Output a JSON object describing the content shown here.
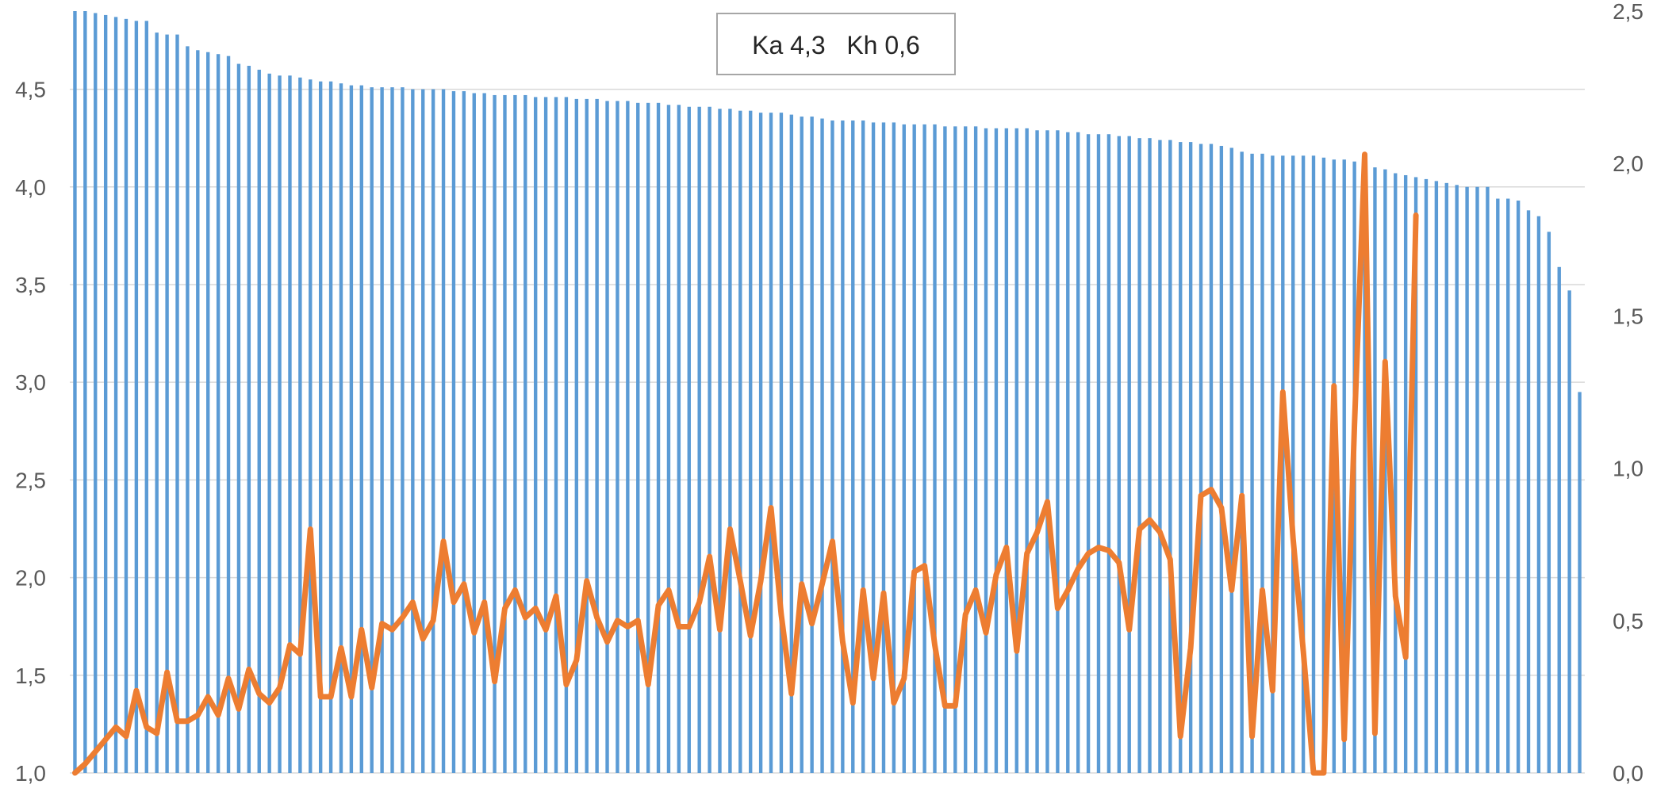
{
  "chart_data": {
    "type": "bar",
    "title": "",
    "annotation": "Ka 4,3   Kh 0,6",
    "xlabel": "",
    "ylabel": "",
    "y_left": {
      "lim": [
        1.0,
        4.9
      ],
      "ticks": [
        "1,0",
        "1,5",
        "2,0",
        "2,5",
        "3,0",
        "3,5",
        "4,0",
        "4,5"
      ],
      "tick_values": [
        1.0,
        1.5,
        2.0,
        2.5,
        3.0,
        3.5,
        4.0,
        4.5
      ]
    },
    "y_right": {
      "lim": [
        0.0,
        2.5
      ],
      "ticks": [
        "0,0",
        "0,5",
        "1,0",
        "1,5",
        "2,0",
        "2,5"
      ],
      "tick_values": [
        0.0,
        0.5,
        1.0,
        1.5,
        2.0,
        2.5
      ]
    },
    "grid": true,
    "colors": {
      "bars": "#5b9bd5",
      "line": "#ed7d31",
      "grid": "#d9d9d9"
    },
    "series": [
      {
        "type": "bar",
        "axis": "left",
        "values": [
          4.9,
          4.9,
          4.89,
          4.88,
          4.87,
          4.86,
          4.85,
          4.85,
          4.79,
          4.78,
          4.78,
          4.72,
          4.7,
          4.69,
          4.68,
          4.67,
          4.63,
          4.62,
          4.6,
          4.58,
          4.57,
          4.57,
          4.56,
          4.55,
          4.54,
          4.54,
          4.53,
          4.52,
          4.52,
          4.51,
          4.51,
          4.51,
          4.51,
          4.5,
          4.5,
          4.5,
          4.5,
          4.49,
          4.49,
          4.48,
          4.48,
          4.47,
          4.47,
          4.47,
          4.47,
          4.46,
          4.46,
          4.46,
          4.46,
          4.45,
          4.45,
          4.45,
          4.44,
          4.44,
          4.44,
          4.43,
          4.43,
          4.43,
          4.42,
          4.42,
          4.41,
          4.41,
          4.41,
          4.4,
          4.4,
          4.39,
          4.39,
          4.38,
          4.38,
          4.38,
          4.37,
          4.36,
          4.36,
          4.35,
          4.34,
          4.34,
          4.34,
          4.34,
          4.33,
          4.33,
          4.33,
          4.32,
          4.32,
          4.32,
          4.32,
          4.31,
          4.31,
          4.31,
          4.31,
          4.3,
          4.3,
          4.3,
          4.3,
          4.3,
          4.29,
          4.29,
          4.29,
          4.28,
          4.28,
          4.27,
          4.27,
          4.27,
          4.26,
          4.26,
          4.25,
          4.25,
          4.24,
          4.24,
          4.23,
          4.23,
          4.22,
          4.22,
          4.21,
          4.2,
          4.18,
          4.17,
          4.17,
          4.16,
          4.16,
          4.16,
          4.16,
          4.16,
          4.15,
          4.14,
          4.14,
          4.13,
          4.12,
          4.1,
          4.09,
          4.07,
          4.06,
          4.05,
          4.04,
          4.03,
          4.02,
          4.01,
          4.0,
          4.0,
          4.0,
          3.94,
          3.94,
          3.93,
          3.88,
          3.85,
          3.77,
          3.59,
          3.47,
          2.95
        ]
      },
      {
        "type": "line",
        "axis": "right",
        "values": [
          0.0,
          0.03,
          0.07,
          0.11,
          0.15,
          0.12,
          0.27,
          0.15,
          0.13,
          0.33,
          0.17,
          0.17,
          0.19,
          0.25,
          0.19,
          0.31,
          0.21,
          0.34,
          0.26,
          0.23,
          0.28,
          0.42,
          0.39,
          0.8,
          0.25,
          0.25,
          0.41,
          0.25,
          0.47,
          0.28,
          0.49,
          0.47,
          0.51,
          0.56,
          0.44,
          0.5,
          0.76,
          0.56,
          0.62,
          0.46,
          0.56,
          0.3,
          0.54,
          0.6,
          0.51,
          0.54,
          0.47,
          0.58,
          0.29,
          0.37,
          0.63,
          0.51,
          0.43,
          0.5,
          0.48,
          0.5,
          0.29,
          0.55,
          0.6,
          0.48,
          0.48,
          0.56,
          0.71,
          0.47,
          0.8,
          0.63,
          0.45,
          0.63,
          0.87,
          0.52,
          0.26,
          0.62,
          0.49,
          0.62,
          0.76,
          0.43,
          0.23,
          0.6,
          0.31,
          0.59,
          0.23,
          0.31,
          0.66,
          0.68,
          0.42,
          0.22,
          0.22,
          0.52,
          0.6,
          0.46,
          0.65,
          0.74,
          0.4,
          0.72,
          0.79,
          0.89,
          0.54,
          0.6,
          0.67,
          0.72,
          0.74,
          0.73,
          0.69,
          0.47,
          0.8,
          0.83,
          0.79,
          0.7,
          0.12,
          0.41,
          0.91,
          0.93,
          0.87,
          0.6,
          0.91,
          0.12,
          0.6,
          0.27,
          1.25,
          0.77,
          0.4,
          0.0,
          0.0,
          1.27,
          0.11,
          1.14,
          2.03,
          0.13,
          1.35,
          0.58,
          0.38,
          1.83
        ]
      }
    ]
  }
}
